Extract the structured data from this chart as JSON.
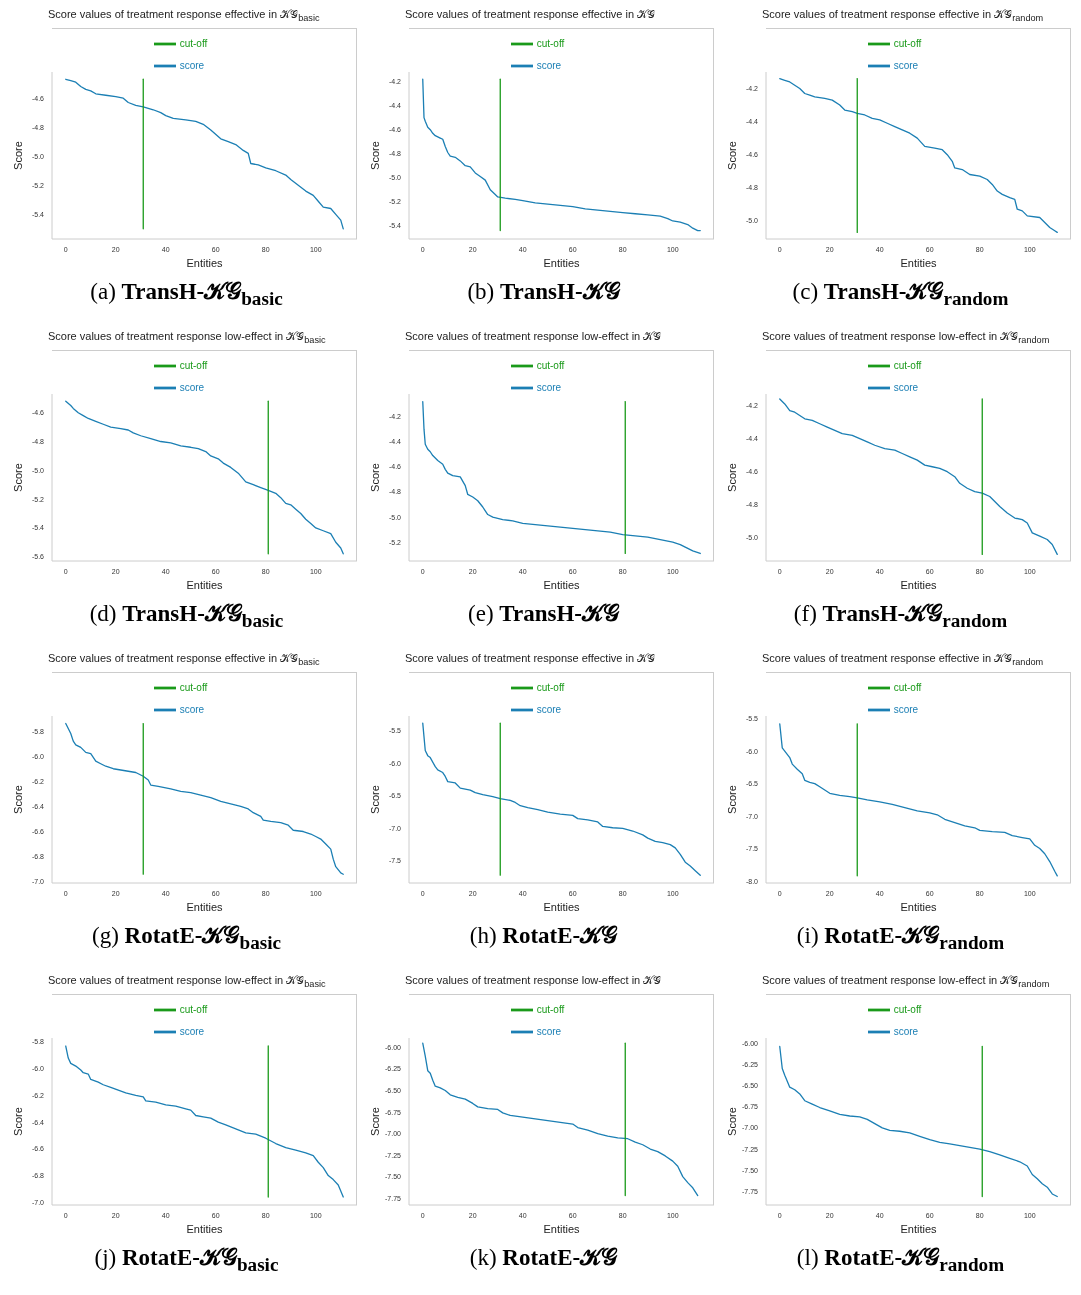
{
  "chart_data": [
    {
      "type": "line",
      "title": "Score values of treatment response effective in 𝒦𝒢$_{basic}$",
      "xlabel": "Entities",
      "ylabel": "Score",
      "legend": "top",
      "annotations": [
        "(a) TransH-𝒦𝒢$_{basic}$"
      ],
      "xlim": [
        -5.5,
        116.5
      ],
      "xticks": [
        0,
        20,
        40,
        60,
        80,
        100
      ],
      "ylim": [
        -5.57,
        -4.42
      ],
      "yticks": [
        -4.6,
        -4.8,
        {
          "value": -5,
          "label": "-5.0"
        },
        -5.2,
        -5.4
      ],
      "series": [
        {
          "name": "score",
          "color": "#1b7fb4",
          "x": [
            0,
            2,
            4,
            6,
            8,
            10,
            12,
            16,
            20,
            23,
            25,
            28,
            31,
            35,
            38,
            40,
            43,
            48,
            52,
            55,
            58,
            62,
            65,
            68,
            71,
            73,
            74,
            77,
            80,
            84,
            88,
            90,
            93,
            96,
            99,
            101,
            103,
            106,
            108,
            110,
            111
          ],
          "values": [
            -4.47,
            -4.48,
            -4.49,
            -4.52,
            -4.54,
            -4.55,
            -4.57,
            -4.58,
            -4.59,
            -4.6,
            -4.63,
            -4.65,
            -4.66,
            -4.68,
            -4.7,
            -4.72,
            -4.74,
            -4.75,
            -4.76,
            -4.78,
            -4.82,
            -4.88,
            -4.9,
            -4.92,
            -4.96,
            -4.98,
            -5.05,
            -5.06,
            -5.08,
            -5.1,
            -5.13,
            -5.16,
            -5.2,
            -5.24,
            -5.27,
            -5.31,
            -5.35,
            -5.36,
            -5.4,
            -5.44,
            -5.5
          ]
        },
        {
          "name": "cut-off",
          "color": "#1a9a1a",
          "x": [
            31,
            31
          ],
          "values": [
            -4.47,
            -5.5
          ]
        }
      ]
    },
    {
      "type": "line",
      "title": "Score values of treatment response effective in 𝒦𝒢",
      "xlabel": "Entities",
      "ylabel": "Score",
      "legend": "top",
      "annotations": [
        "(b) TransH-𝒦𝒢"
      ],
      "xlim": [
        -5.5,
        116.5
      ],
      "xticks": [
        0,
        20,
        40,
        60,
        80,
        100
      ],
      "ylim": [
        -5.51,
        -4.12
      ],
      "yticks": [
        -4.2,
        -4.4,
        -4.6,
        -4.8,
        {
          "value": -5,
          "label": "-5.0"
        },
        -5.2,
        -5.4
      ],
      "series": [
        {
          "name": "score",
          "color": "#1b7fb4",
          "x": [
            0,
            0.5,
            1,
            2,
            3,
            4,
            5,
            7,
            8,
            9,
            10,
            11,
            13,
            15,
            17,
            19,
            21,
            23,
            25,
            27,
            29,
            30,
            33,
            37,
            40,
            45,
            50,
            55,
            60,
            65,
            70,
            75,
            80,
            85,
            90,
            95,
            98,
            100,
            103,
            106,
            108,
            110,
            111
          ],
          "values": [
            -4.18,
            -4.5,
            -4.53,
            -4.58,
            -4.6,
            -4.63,
            -4.65,
            -4.67,
            -4.68,
            -4.74,
            -4.79,
            -4.82,
            -4.83,
            -4.86,
            -4.9,
            -4.91,
            -4.96,
            -4.99,
            -5.02,
            -5.1,
            -5.14,
            -5.16,
            -5.17,
            -5.18,
            -5.19,
            -5.21,
            -5.22,
            -5.23,
            -5.24,
            -5.26,
            -5.27,
            -5.28,
            -5.29,
            -5.3,
            -5.31,
            -5.32,
            -5.34,
            -5.36,
            -5.37,
            -5.39,
            -5.42,
            -5.44,
            -5.44
          ]
        },
        {
          "name": "cut-off",
          "color": "#1a9a1a",
          "x": [
            31,
            31
          ],
          "values": [
            -4.18,
            -5.44
          ]
        }
      ]
    },
    {
      "type": "line",
      "title": "Score values of treatment response effective in 𝒦𝒢$_{random}$",
      "xlabel": "Entities",
      "ylabel": "Score",
      "legend": "top",
      "annotations": [
        "(c) TransH-𝒦𝒢$_{random}$"
      ],
      "xlim": [
        -5.5,
        116.5
      ],
      "xticks": [
        0,
        20,
        40,
        60,
        80,
        100
      ],
      "ylim": [
        -5.11,
        -4.1
      ],
      "yticks": [
        -4.2,
        -4.4,
        -4.6,
        -4.8,
        {
          "value": -5,
          "label": "-5.0"
        }
      ],
      "series": [
        {
          "name": "score",
          "color": "#1b7fb4",
          "x": [
            0,
            2,
            4,
            6,
            8,
            10,
            12,
            14,
            18,
            21,
            24,
            26,
            29,
            31,
            34,
            37,
            40,
            43,
            46,
            49,
            52,
            55,
            58,
            62,
            65,
            67,
            69,
            70,
            73,
            76,
            80,
            83,
            85,
            87,
            89,
            92,
            94,
            95,
            97,
            99,
            104,
            106,
            108,
            110,
            111
          ],
          "values": [
            -4.14,
            -4.15,
            -4.16,
            -4.18,
            -4.2,
            -4.23,
            -4.24,
            -4.25,
            -4.26,
            -4.27,
            -4.3,
            -4.33,
            -4.34,
            -4.35,
            -4.36,
            -4.38,
            -4.39,
            -4.41,
            -4.43,
            -4.45,
            -4.47,
            -4.5,
            -4.55,
            -4.56,
            -4.57,
            -4.6,
            -4.64,
            -4.68,
            -4.69,
            -4.72,
            -4.73,
            -4.75,
            -4.78,
            -4.82,
            -4.84,
            -4.86,
            -4.87,
            -4.93,
            -4.94,
            -4.97,
            -4.98,
            -5.01,
            -5.04,
            -5.06,
            -5.07
          ]
        },
        {
          "name": "cut-off",
          "color": "#1a9a1a",
          "x": [
            31,
            31
          ],
          "values": [
            -4.14,
            -5.07
          ]
        }
      ]
    },
    {
      "type": "line",
      "title": "Score values of treatment response low-effect in 𝒦𝒢$_{basic}$",
      "xlabel": "Entities",
      "ylabel": "Score",
      "legend": "top",
      "annotations": [
        "(d) TransH-𝒦𝒢$_{basic}$"
      ],
      "xlim": [
        -5.5,
        116.5
      ],
      "xticks": [
        0,
        20,
        40,
        60,
        80,
        100
      ],
      "ylim": [
        -5.63,
        -4.47
      ],
      "yticks": [
        -4.6,
        -4.8,
        {
          "value": -5,
          "label": "-5.0"
        },
        -5.2,
        -5.4,
        -5.6
      ],
      "series": [
        {
          "name": "score",
          "color": "#1b7fb4",
          "x": [
            0,
            2,
            3,
            5,
            7,
            9,
            12,
            15,
            18,
            22,
            25,
            27,
            30,
            34,
            38,
            42,
            46,
            50,
            53,
            56,
            58,
            61,
            63,
            66,
            69,
            72,
            75,
            78,
            81,
            84,
            86,
            88,
            90,
            92,
            94,
            96,
            98,
            100,
            103,
            106,
            108,
            110,
            111
          ],
          "values": [
            -4.52,
            -4.55,
            -4.57,
            -4.6,
            -4.62,
            -4.64,
            -4.66,
            -4.68,
            -4.7,
            -4.71,
            -4.72,
            -4.74,
            -4.76,
            -4.78,
            -4.8,
            -4.81,
            -4.83,
            -4.84,
            -4.85,
            -4.87,
            -4.9,
            -4.92,
            -4.95,
            -4.98,
            -5.02,
            -5.08,
            -5.1,
            -5.12,
            -5.14,
            -5.16,
            -5.19,
            -5.23,
            -5.24,
            -5.27,
            -5.3,
            -5.34,
            -5.37,
            -5.4,
            -5.42,
            -5.44,
            -5.5,
            -5.54,
            -5.58
          ]
        },
        {
          "name": "cut-off",
          "color": "#1a9a1a",
          "x": [
            81,
            81
          ],
          "values": [
            -4.52,
            -5.58
          ]
        }
      ]
    },
    {
      "type": "line",
      "title": "Score values of treatment response low-effect in 𝒦𝒢",
      "xlabel": "Entities",
      "ylabel": "Score",
      "legend": "top",
      "annotations": [
        "(e) TransH-𝒦𝒢"
      ],
      "xlim": [
        -5.5,
        116.5
      ],
      "xticks": [
        0,
        20,
        40,
        60,
        80,
        100
      ],
      "ylim": [
        -5.35,
        -4.02
      ],
      "yticks": [
        -4.2,
        -4.4,
        -4.6,
        -4.8,
        {
          "value": -5,
          "label": "-5.0"
        },
        -5.2
      ],
      "series": [
        {
          "name": "score",
          "color": "#1b7fb4",
          "x": [
            0,
            0.5,
            1,
            2,
            3,
            4,
            6,
            8,
            9,
            10,
            12,
            15,
            17,
            18,
            20,
            22,
            24,
            26,
            28,
            32,
            36,
            40,
            45,
            50,
            55,
            60,
            65,
            70,
            75,
            80,
            85,
            90,
            95,
            100,
            103,
            106,
            108,
            111
          ],
          "values": [
            -4.08,
            -4.3,
            -4.42,
            -4.46,
            -4.48,
            -4.51,
            -4.55,
            -4.58,
            -4.62,
            -4.65,
            -4.67,
            -4.68,
            -4.75,
            -4.82,
            -4.84,
            -4.87,
            -4.92,
            -4.98,
            -5,
            -5.02,
            -5.03,
            -5.05,
            -5.06,
            -5.07,
            -5.08,
            -5.09,
            -5.1,
            -5.11,
            -5.12,
            -5.14,
            -5.15,
            -5.16,
            -5.18,
            -5.2,
            -5.22,
            -5.25,
            -5.27,
            -5.29
          ]
        },
        {
          "name": "cut-off",
          "color": "#1a9a1a",
          "x": [
            81,
            81
          ],
          "values": [
            -4.08,
            -5.29
          ]
        }
      ]
    },
    {
      "type": "line",
      "title": "Score values of treatment response low-effect in 𝒦𝒢$_{random}$",
      "xlabel": "Entities",
      "ylabel": "Score",
      "legend": "top",
      "annotations": [
        "(f) TransH-𝒦𝒢$_{random}$"
      ],
      "xlim": [
        -5.5,
        116.5
      ],
      "xticks": [
        0,
        20,
        40,
        60,
        80,
        100
      ],
      "ylim": [
        -5.14,
        -4.13
      ],
      "yticks": [
        -4.2,
        -4.4,
        -4.6,
        -4.8,
        {
          "value": -5,
          "label": "-5.0"
        }
      ],
      "series": [
        {
          "name": "score",
          "color": "#1b7fb4",
          "x": [
            0,
            2,
            4,
            6,
            8,
            10,
            13,
            16,
            19,
            22,
            25,
            29,
            32,
            35,
            38,
            42,
            46,
            49,
            52,
            55,
            58,
            61,
            64,
            67,
            70,
            72,
            75,
            78,
            81,
            84,
            86,
            88,
            91,
            94,
            97,
            99,
            101,
            104,
            107,
            109,
            111
          ],
          "values": [
            -4.16,
            -4.19,
            -4.23,
            -4.24,
            -4.26,
            -4.28,
            -4.29,
            -4.31,
            -4.33,
            -4.35,
            -4.37,
            -4.38,
            -4.4,
            -4.42,
            -4.44,
            -4.46,
            -4.47,
            -4.49,
            -4.51,
            -4.53,
            -4.56,
            -4.57,
            -4.58,
            -4.6,
            -4.63,
            -4.67,
            -4.7,
            -4.72,
            -4.73,
            -4.75,
            -4.78,
            -4.81,
            -4.85,
            -4.88,
            -4.89,
            -4.91,
            -4.97,
            -4.99,
            -5.01,
            -5.04,
            -5.1
          ]
        },
        {
          "name": "cut-off",
          "color": "#1a9a1a",
          "x": [
            81,
            81
          ],
          "values": [
            -4.16,
            -5.1
          ]
        }
      ]
    },
    {
      "type": "line",
      "title": "Score values of treatment response effective in 𝒦𝒢$_{basic}$",
      "xlabel": "Entities",
      "ylabel": "Score",
      "legend": "top",
      "annotations": [
        "(g) RotatE-𝒦𝒢$_{basic}$"
      ],
      "xlim": [
        -5.5,
        116.5
      ],
      "xticks": [
        0,
        20,
        40,
        60,
        80,
        100
      ],
      "ylim": [
        -7.01,
        -5.68
      ],
      "yticks": [
        -5.8,
        {
          "value": -6,
          "label": "-6.0"
        },
        -6.2,
        -6.4,
        -6.6,
        -6.8,
        {
          "value": -7,
          "label": "-7.0"
        }
      ],
      "series": [
        {
          "name": "score",
          "color": "#1b7fb4",
          "x": [
            0,
            2,
            3,
            4,
            6,
            8,
            10,
            11,
            12,
            14,
            16,
            19,
            22,
            25,
            28,
            31,
            33,
            34,
            37,
            42,
            46,
            50,
            54,
            58,
            62,
            66,
            70,
            73,
            75,
            78,
            79,
            82,
            86,
            89,
            91,
            95,
            98,
            100,
            102,
            104,
            106,
            107,
            108,
            110,
            111
          ],
          "values": [
            -5.74,
            -5.82,
            -5.88,
            -5.91,
            -5.93,
            -5.97,
            -5.98,
            -6.01,
            -6.04,
            -6.06,
            -6.08,
            -6.1,
            -6.11,
            -6.12,
            -6.13,
            -6.16,
            -6.19,
            -6.23,
            -6.24,
            -6.26,
            -6.28,
            -6.29,
            -6.31,
            -6.33,
            -6.36,
            -6.38,
            -6.4,
            -6.42,
            -6.45,
            -6.48,
            -6.51,
            -6.52,
            -6.53,
            -6.55,
            -6.59,
            -6.6,
            -6.62,
            -6.64,
            -6.66,
            -6.7,
            -6.74,
            -6.82,
            -6.88,
            -6.93,
            -6.94
          ]
        },
        {
          "name": "cut-off",
          "color": "#1a9a1a",
          "x": [
            31,
            31
          ],
          "values": [
            -5.74,
            -6.94
          ]
        }
      ]
    },
    {
      "type": "line",
      "title": "Score values of treatment response effective in 𝒦𝒢",
      "xlabel": "Entities",
      "ylabel": "Score",
      "legend": "top",
      "annotations": [
        "(h) RotatE-𝒦𝒢"
      ],
      "xlim": [
        -5.5,
        116.5
      ],
      "xticks": [
        0,
        20,
        40,
        60,
        80,
        100
      ],
      "ylim": [
        -7.84,
        -5.27
      ],
      "yticks": [
        -5.5,
        {
          "value": -6,
          "label": "-6.0"
        },
        -6.5,
        {
          "value": -7,
          "label": "-7.0"
        },
        -7.5
      ],
      "series": [
        {
          "name": "score",
          "color": "#1b7fb4",
          "x": [
            0,
            1,
            2,
            3,
            5,
            6,
            8,
            9,
            10,
            13,
            15,
            19,
            21,
            24,
            28,
            31,
            35,
            37,
            39,
            42,
            46,
            50,
            55,
            60,
            62,
            66,
            70,
            72,
            76,
            80,
            84,
            88,
            90,
            93,
            96,
            99,
            101,
            103,
            105,
            107,
            109,
            111
          ],
          "values": [
            -5.38,
            -5.8,
            -5.88,
            -5.91,
            -6.05,
            -6.1,
            -6.14,
            -6.2,
            -6.28,
            -6.3,
            -6.38,
            -6.41,
            -6.45,
            -6.48,
            -6.51,
            -6.54,
            -6.57,
            -6.6,
            -6.65,
            -6.68,
            -6.71,
            -6.75,
            -6.78,
            -6.8,
            -6.85,
            -6.87,
            -6.9,
            -6.97,
            -6.99,
            -7,
            -7.04,
            -7.1,
            -7.15,
            -7.2,
            -7.22,
            -7.25,
            -7.3,
            -7.4,
            -7.52,
            -7.58,
            -7.65,
            -7.72
          ]
        },
        {
          "name": "cut-off",
          "color": "#1a9a1a",
          "x": [
            31,
            31
          ],
          "values": [
            -5.38,
            -7.72
          ]
        }
      ]
    },
    {
      "type": "line",
      "title": "Score values of treatment response effective in 𝒦𝒢$_{random}$",
      "xlabel": "Entities",
      "ylabel": "Score",
      "legend": "top",
      "annotations": [
        "(i) RotatE-𝒦𝒢$_{random}$"
      ],
      "xlim": [
        -5.5,
        116.5
      ],
      "xticks": [
        0,
        20,
        40,
        60,
        80,
        100
      ],
      "ylim": [
        -8.03,
        -5.46
      ],
      "yticks": [
        -5.5,
        {
          "value": -6,
          "label": "-6.0"
        },
        -6.5,
        {
          "value": -7,
          "label": "-7.0"
        },
        -7.5,
        {
          "value": -8,
          "label": "-8.0"
        }
      ],
      "series": [
        {
          "name": "score",
          "color": "#1b7fb4",
          "x": [
            0,
            1,
            2,
            4,
            5,
            7,
            9,
            10,
            12,
            14,
            16,
            18,
            20,
            24,
            28,
            31,
            35,
            40,
            45,
            50,
            55,
            60,
            63,
            66,
            70,
            74,
            78,
            80,
            85,
            90,
            93,
            97,
            100,
            102,
            104,
            106,
            108,
            110,
            111
          ],
          "values": [
            -5.58,
            -5.95,
            -6,
            -6.1,
            -6.2,
            -6.28,
            -6.35,
            -6.45,
            -6.48,
            -6.5,
            -6.55,
            -6.6,
            -6.65,
            -6.68,
            -6.7,
            -6.72,
            -6.75,
            -6.78,
            -6.82,
            -6.87,
            -6.92,
            -6.95,
            -6.98,
            -7.05,
            -7.1,
            -7.15,
            -7.18,
            -7.22,
            -7.24,
            -7.25,
            -7.3,
            -7.33,
            -7.35,
            -7.45,
            -7.5,
            -7.58,
            -7.7,
            -7.85,
            -7.92
          ]
        },
        {
          "name": "cut-off",
          "color": "#1a9a1a",
          "x": [
            31,
            31
          ],
          "values": [
            -5.58,
            -7.92
          ]
        }
      ]
    },
    {
      "type": "line",
      "title": "Score values of treatment response low-effect in 𝒦𝒢$_{basic}$",
      "xlabel": "Entities",
      "ylabel": "Score",
      "legend": "top",
      "annotations": [
        "(j) RotatE-𝒦𝒢$_{basic}$"
      ],
      "xlim": [
        -5.5,
        116.5
      ],
      "xticks": [
        0,
        20,
        40,
        60,
        80,
        100
      ],
      "ylim": [
        -7.02,
        -5.77
      ],
      "yticks": [
        -5.8,
        {
          "value": -6,
          "label": "-6.0"
        },
        -6.2,
        -6.4,
        -6.6,
        -6.8,
        {
          "value": -7,
          "label": "-7.0"
        }
      ],
      "series": [
        {
          "name": "score",
          "color": "#1b7fb4",
          "x": [
            0,
            1,
            2,
            4,
            6,
            7,
            9,
            10,
            13,
            15,
            18,
            21,
            24,
            28,
            31,
            32,
            36,
            40,
            44,
            48,
            50,
            52,
            55,
            58,
            61,
            64,
            68,
            72,
            76,
            80,
            84,
            88,
            92,
            96,
            99,
            101,
            103,
            105,
            107,
            109,
            111
          ],
          "values": [
            -5.83,
            -5.92,
            -5.96,
            -5.98,
            -6.01,
            -6.03,
            -6.04,
            -6.08,
            -6.1,
            -6.12,
            -6.14,
            -6.16,
            -6.18,
            -6.2,
            -6.21,
            -6.24,
            -6.25,
            -6.27,
            -6.28,
            -6.3,
            -6.31,
            -6.35,
            -6.36,
            -6.37,
            -6.4,
            -6.42,
            -6.45,
            -6.48,
            -6.49,
            -6.52,
            -6.56,
            -6.59,
            -6.61,
            -6.63,
            -6.65,
            -6.7,
            -6.74,
            -6.8,
            -6.83,
            -6.87,
            -6.96
          ]
        },
        {
          "name": "cut-off",
          "color": "#1a9a1a",
          "x": [
            81,
            81
          ],
          "values": [
            -5.83,
            -6.96
          ]
        }
      ]
    },
    {
      "type": "line",
      "title": "Score values of treatment response low-effect in 𝒦𝒢",
      "xlabel": "Entities",
      "ylabel": "Score",
      "legend": "top",
      "annotations": [
        "(k) RotatE-𝒦𝒢"
      ],
      "xlim": [
        -5.5,
        116.5
      ],
      "xticks": [
        0,
        20,
        40,
        60,
        80,
        100
      ],
      "ylim": [
        -7.83,
        -5.89
      ],
      "yticks": [
        {
          "value": -6,
          "label": "-6.00"
        },
        -6.25,
        {
          "value": -6.5,
          "label": "-6.50"
        },
        -6.75,
        {
          "value": -7,
          "label": "-7.00"
        },
        -7.25,
        {
          "value": -7.5,
          "label": "-7.50"
        },
        -7.75
      ],
      "series": [
        {
          "name": "score",
          "color": "#1b7fb4",
          "x": [
            0,
            1,
            2,
            3,
            4,
            5,
            7,
            9,
            11,
            14,
            17,
            20,
            22,
            26,
            30,
            32,
            35,
            40,
            45,
            50,
            55,
            60,
            62,
            66,
            70,
            74,
            78,
            82,
            85,
            88,
            91,
            94,
            97,
            100,
            102,
            104,
            106,
            108,
            110
          ],
          "values": [
            -5.95,
            -6.1,
            -6.27,
            -6.3,
            -6.38,
            -6.45,
            -6.47,
            -6.5,
            -6.55,
            -6.58,
            -6.6,
            -6.65,
            -6.69,
            -6.71,
            -6.72,
            -6.76,
            -6.79,
            -6.81,
            -6.83,
            -6.85,
            -6.87,
            -6.89,
            -6.93,
            -6.96,
            -7,
            -7.03,
            -7.05,
            -7.06,
            -7.1,
            -7.13,
            -7.18,
            -7.21,
            -7.26,
            -7.32,
            -7.38,
            -7.5,
            -7.57,
            -7.63,
            -7.72
          ]
        },
        {
          "name": "cut-off",
          "color": "#1a9a1a",
          "x": [
            81,
            81
          ],
          "values": [
            -5.95,
            -7.72
          ]
        }
      ]
    },
    {
      "type": "line",
      "title": "Score values of treatment response low-effect in 𝒦𝒢$_{random}$",
      "xlabel": "Entities",
      "ylabel": "Score",
      "legend": "top",
      "annotations": [
        "(l) RotatE-𝒦𝒢$_{random}$"
      ],
      "xlim": [
        -5.5,
        116.5
      ],
      "xticks": [
        0,
        20,
        40,
        60,
        80,
        100
      ],
      "ylim": [
        -7.91,
        -5.94
      ],
      "yticks": [
        {
          "value": -6,
          "label": "-6.00"
        },
        -6.25,
        {
          "value": -6.5,
          "label": "-6.50"
        },
        -6.75,
        {
          "value": -7,
          "label": "-7.00"
        },
        -7.25,
        {
          "value": -7.5,
          "label": "-7.50"
        },
        -7.75
      ],
      "series": [
        {
          "name": "score",
          "color": "#1b7fb4",
          "x": [
            0,
            1,
            2,
            3,
            4,
            6,
            8,
            10,
            13,
            16,
            20,
            24,
            28,
            32,
            35,
            38,
            41,
            44,
            48,
            52,
            56,
            60,
            64,
            68,
            72,
            76,
            80,
            84,
            88,
            92,
            96,
            99,
            101,
            103,
            105,
            107,
            109,
            111
          ],
          "values": [
            -6.04,
            -6.3,
            -6.38,
            -6.45,
            -6.52,
            -6.55,
            -6.6,
            -6.68,
            -6.72,
            -6.76,
            -6.8,
            -6.84,
            -6.86,
            -6.87,
            -6.9,
            -6.95,
            -7,
            -7.03,
            -7.04,
            -7.06,
            -7.1,
            -7.14,
            -7.17,
            -7.19,
            -7.21,
            -7.23,
            -7.25,
            -7.28,
            -7.32,
            -7.36,
            -7.4,
            -7.45,
            -7.55,
            -7.6,
            -7.66,
            -7.7,
            -7.78,
            -7.81
          ]
        },
        {
          "name": "cut-off",
          "color": "#1a9a1a",
          "x": [
            81,
            81
          ],
          "values": [
            -6.04,
            -7.81
          ]
        }
      ]
    }
  ]
}
